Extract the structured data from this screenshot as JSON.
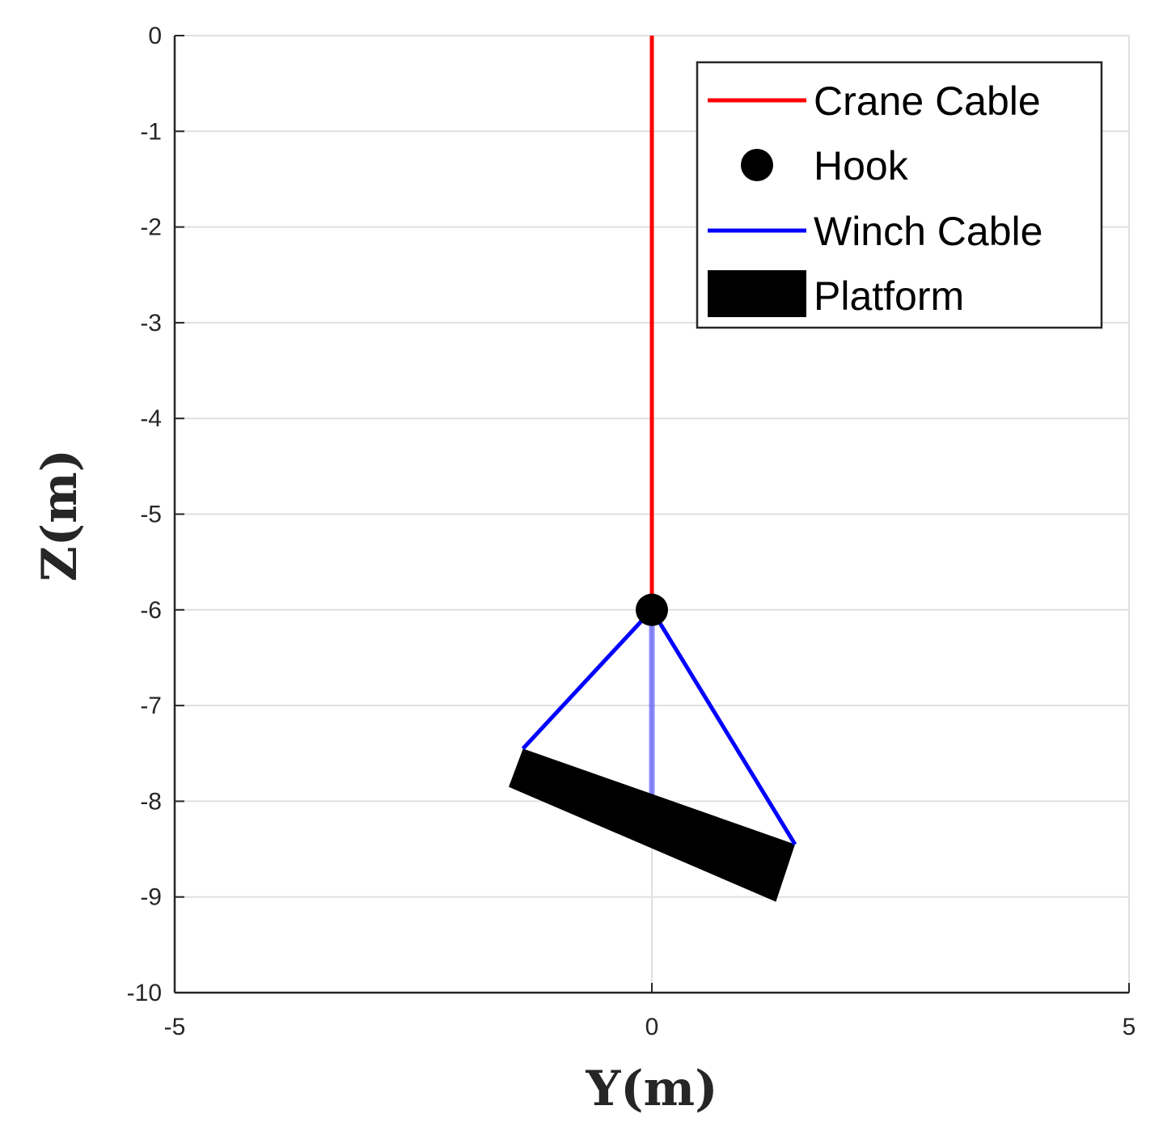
{
  "chart_data": {
    "type": "line",
    "xlabel": "Y(m)",
    "ylabel": "Z(m)",
    "xlim": [
      -5,
      5
    ],
    "ylim": [
      -10,
      0
    ],
    "xticks": [
      -5,
      0,
      5
    ],
    "yticks": [
      0,
      -1,
      -2,
      -3,
      -4,
      -5,
      -6,
      -7,
      -8,
      -9,
      -10
    ],
    "grid": true,
    "legend_position": "top-right",
    "series": [
      {
        "name": "Crane Cable",
        "kind": "line",
        "color": "#ff0000",
        "x": [
          0,
          0
        ],
        "y": [
          0,
          -6
        ]
      },
      {
        "name": "Hook",
        "kind": "marker",
        "color": "#000000",
        "x": [
          0
        ],
        "y": [
          -6
        ]
      },
      {
        "name": "Winch Cable",
        "kind": "line",
        "color": "#0000ff",
        "x": [
          -1.35,
          0,
          1.5
        ],
        "y": [
          -7.45,
          -6,
          -8.45
        ]
      },
      {
        "name": "Platform",
        "kind": "polygon",
        "color": "#000000",
        "x": [
          -1.5,
          -1.35,
          1.5,
          1.3
        ],
        "y": [
          -7.85,
          -7.45,
          -8.45,
          -9.05
        ]
      }
    ],
    "extra": {
      "faded_cable": {
        "color": "#0000ff",
        "opacity": 0.45,
        "x": [
          0,
          0
        ],
        "y": [
          -6,
          -7.95
        ]
      }
    }
  }
}
